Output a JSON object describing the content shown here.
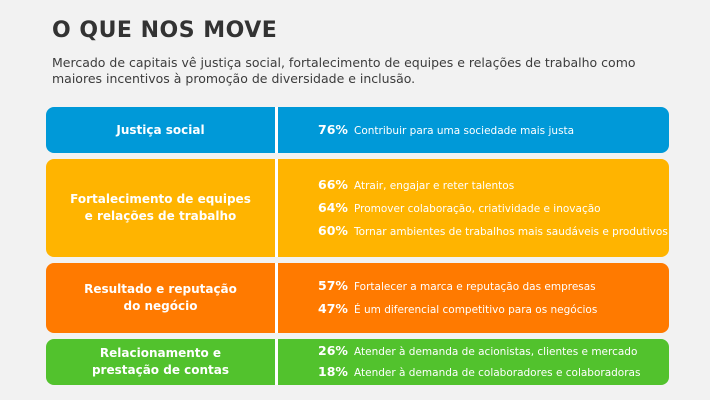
{
  "header": {
    "title": "O QUE NOS MOVE",
    "subtitle": "Mercado de capitais vê justiça social, fortalecimento de equipes e relações de trabalho como maiores incentivos à promoção de diversidade e inclusão."
  },
  "colors": {
    "justica": "#0099d8",
    "equipes": "#ffb400",
    "resultado": "#ff7a00",
    "relacionamento": "#52c22d"
  },
  "chart_data": {
    "type": "table",
    "title": "O QUE NOS MOVE",
    "unit": "%",
    "groups": [
      {
        "category": "Justiça social",
        "items": [
          {
            "value": 76,
            "pct": "76%",
            "label": "Contribuir para uma sociedade mais justa"
          }
        ]
      },
      {
        "category": "Fortalecimento de equipes\ne relações de trabalho",
        "items": [
          {
            "value": 66,
            "pct": "66%",
            "label": "Atrair, engajar e reter talentos"
          },
          {
            "value": 64,
            "pct": "64%",
            "label": "Promover colaboração, criatividade e inovação"
          },
          {
            "value": 60,
            "pct": "60%",
            "label": "Tornar ambientes de trabalhos mais saudáveis e produtivos"
          }
        ]
      },
      {
        "category": "Resultado e reputação\ndo negócio",
        "items": [
          {
            "value": 57,
            "pct": "57%",
            "label": "Fortalecer a marca e reputação das empresas"
          },
          {
            "value": 47,
            "pct": "47%",
            "label": "É um diferencial competitivo para os negócios"
          }
        ]
      },
      {
        "category": "Relacionamento e\nprestação de contas",
        "items": [
          {
            "value": 26,
            "pct": "26%",
            "label": "Atender à demanda de acionistas, clientes e mercado"
          },
          {
            "value": 18,
            "pct": "18%",
            "label": "Atender à demanda de colaboradores e colaboradoras"
          }
        ]
      }
    ]
  }
}
